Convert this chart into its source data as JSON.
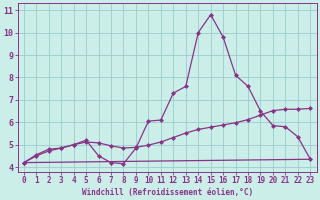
{
  "xlabel": "Windchill (Refroidissement éolien,°C)",
  "bg_color": "#cceee8",
  "line_color": "#883388",
  "grid_color": "#99cccc",
  "xlim": [
    -0.5,
    23.5
  ],
  "ylim": [
    3.8,
    11.3
  ],
  "yticks": [
    4,
    5,
    6,
    7,
    8,
    9,
    10,
    11
  ],
  "xticks": [
    0,
    1,
    2,
    3,
    4,
    5,
    6,
    7,
    8,
    9,
    10,
    11,
    12,
    13,
    14,
    15,
    16,
    17,
    18,
    19,
    20,
    21,
    22,
    23
  ],
  "line1_x": [
    0,
    1,
    2,
    3,
    4,
    5,
    6,
    7,
    8,
    9,
    10,
    11,
    12,
    13,
    14,
    15,
    16,
    17,
    18,
    19,
    20,
    21,
    22,
    23
  ],
  "line1_y": [
    4.2,
    4.55,
    4.8,
    4.85,
    5.0,
    5.2,
    4.5,
    4.2,
    4.15,
    4.85,
    6.05,
    6.1,
    7.3,
    7.6,
    10.0,
    10.8,
    9.8,
    8.1,
    7.6,
    6.5,
    5.85,
    5.8,
    5.35,
    4.35
  ],
  "line2_x": [
    0,
    1,
    2,
    3,
    4,
    5,
    6,
    7,
    8,
    9,
    10,
    11,
    12,
    13,
    14,
    15,
    16,
    17,
    18,
    19,
    20,
    21,
    22,
    23
  ],
  "line2_y": [
    4.2,
    4.5,
    4.72,
    4.85,
    5.0,
    5.12,
    5.08,
    4.95,
    4.85,
    4.88,
    4.98,
    5.12,
    5.32,
    5.52,
    5.68,
    5.78,
    5.88,
    5.98,
    6.12,
    6.32,
    6.52,
    6.58,
    6.58,
    6.62
  ],
  "line3_x": [
    0,
    23
  ],
  "line3_y": [
    4.2,
    4.35
  ],
  "marker": "D",
  "markersize": 2.0,
  "linewidth": 0.9,
  "tick_fontsize": 5.5,
  "xlabel_fontsize": 5.5
}
